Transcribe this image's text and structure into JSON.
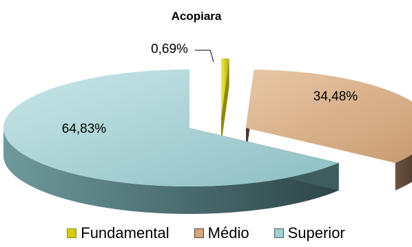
{
  "chart_data": {
    "type": "pie",
    "title": "Acopiara",
    "labels": [
      "Fundamental",
      "Médio",
      "Superior"
    ],
    "values": [
      0.69,
      34.48,
      64.83
    ],
    "value_labels": [
      "0,69%",
      "34,48%",
      "64,83%"
    ],
    "colors": [
      "#d4cc16",
      "#d2a57c",
      "#a3cfd2"
    ],
    "side_colors": [
      "#8f8a0c",
      "#5c4433",
      "#415f5f"
    ],
    "exploded": true,
    "three_d": true,
    "legend_position": "bottom"
  }
}
